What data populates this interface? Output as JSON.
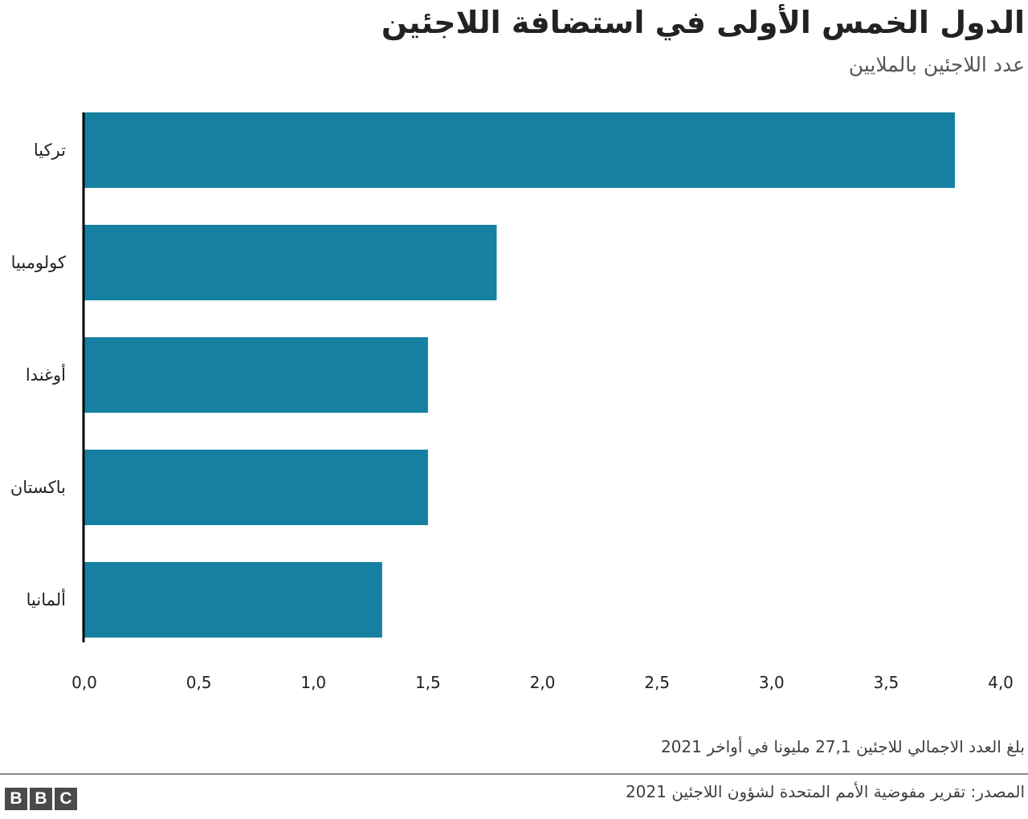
{
  "chart_data": {
    "type": "bar",
    "orientation": "horizontal",
    "title": "الدول الخمس الأولى في استضافة اللاجئين",
    "subtitle": "عدد اللاجئين بالملايين",
    "categories": [
      "تركيا",
      "كولومبيا",
      "أوغندا",
      "باكستان",
      "ألمانيا"
    ],
    "values": [
      3.8,
      1.8,
      1.5,
      1.5,
      1.3
    ],
    "xlim": [
      0,
      4
    ],
    "ticks": [
      0,
      0.5,
      1,
      1.5,
      2,
      2.5,
      3,
      3.5,
      4
    ],
    "tick_labels": [
      "0,0",
      "0,5",
      "1,0",
      "1,5",
      "2,0",
      "2,5",
      "3,0",
      "3,5",
      "4,0"
    ],
    "bar_color": "#1580a1",
    "axis_color": "#000000",
    "grid": false,
    "legend": "none"
  },
  "footer": {
    "note": "بلغ العدد الاجمالي للاجئين 27,1 مليونا في أواخر 2021",
    "source": "المصدر: تقرير مفوضية الأمم المتحدة لشؤون اللاجئين 2021",
    "logo_letters": [
      "B",
      "B",
      "C"
    ]
  }
}
